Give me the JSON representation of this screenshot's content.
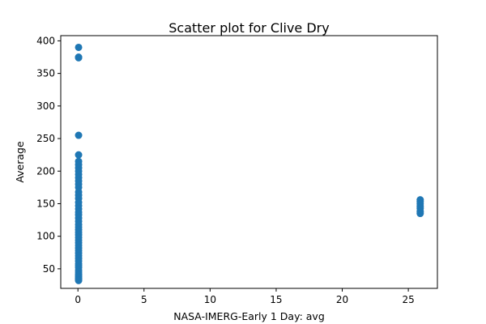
{
  "chart_data": {
    "type": "scatter",
    "title": "Scatter plot for Clive Dry",
    "xlabel": "NASA-IMERG-Early 1 Day: avg",
    "ylabel": "Average",
    "xlim": [
      -1.3,
      27.2
    ],
    "ylim": [
      20,
      408
    ],
    "xticks": [
      0,
      5,
      10,
      15,
      20,
      25
    ],
    "yticks": [
      50,
      100,
      150,
      200,
      250,
      300,
      350,
      400
    ],
    "grid": false,
    "marker_color": "#1f77b4",
    "series": [
      {
        "x": [
          0.05,
          0.05,
          0.05,
          0.05,
          0.05,
          0.05,
          0.05,
          0.05,
          0.05,
          0.05,
          0.05,
          0.05,
          0.05,
          0.05,
          0.05,
          0.05,
          0.05,
          0.05,
          0.05,
          0.05,
          0.05,
          0.05,
          0.05,
          0.05,
          0.05,
          0.05,
          0.05,
          0.05,
          0.05,
          0.05,
          0.05,
          0.05,
          0.05,
          0.05,
          0.05,
          0.05,
          0.05,
          0.05,
          0.05,
          0.05,
          0.05,
          0.05,
          0.05,
          0.05,
          0.05,
          0.05,
          0.05,
          0.05,
          0.05,
          0.05,
          0.05,
          25.9,
          25.9,
          25.9,
          25.9,
          25.9,
          25.9,
          25.9
        ],
        "y": [
          390,
          375,
          374,
          255,
          225,
          215,
          210,
          205,
          200,
          195,
          190,
          185,
          180,
          175,
          168,
          163,
          158,
          152,
          147,
          142,
          137,
          133,
          128,
          123,
          118,
          114,
          110,
          106,
          102,
          98,
          94,
          90,
          86,
          82,
          78,
          74,
          70,
          66,
          62,
          58,
          55,
          52,
          48,
          45,
          42,
          40,
          38,
          36,
          35,
          33,
          32,
          156,
          153,
          150,
          146,
          143,
          138,
          135
        ]
      }
    ]
  }
}
